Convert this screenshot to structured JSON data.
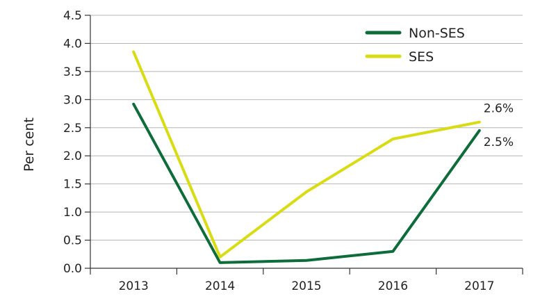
{
  "chart_data": {
    "type": "line",
    "title": "",
    "xlabel": "",
    "ylabel": "Per cent",
    "categories": [
      "2013",
      "2014",
      "2015",
      "2016",
      "2017"
    ],
    "ylim": [
      0,
      4.5
    ],
    "yticks": [
      "0.0",
      "0.5",
      "1.0",
      "1.5",
      "2.0",
      "2.5",
      "3.0",
      "3.5",
      "4.0",
      "4.5"
    ],
    "grid": true,
    "legend_position": "top-right",
    "series": [
      {
        "name": "Non-SES",
        "color": "#0e6b3a",
        "values": [
          2.92,
          0.1,
          0.14,
          0.3,
          2.45
        ],
        "end_label": "2.5%"
      },
      {
        "name": "SES",
        "color": "#d8dc14",
        "values": [
          3.85,
          0.2,
          1.36,
          2.3,
          2.6
        ],
        "end_label": "2.6%"
      }
    ]
  }
}
